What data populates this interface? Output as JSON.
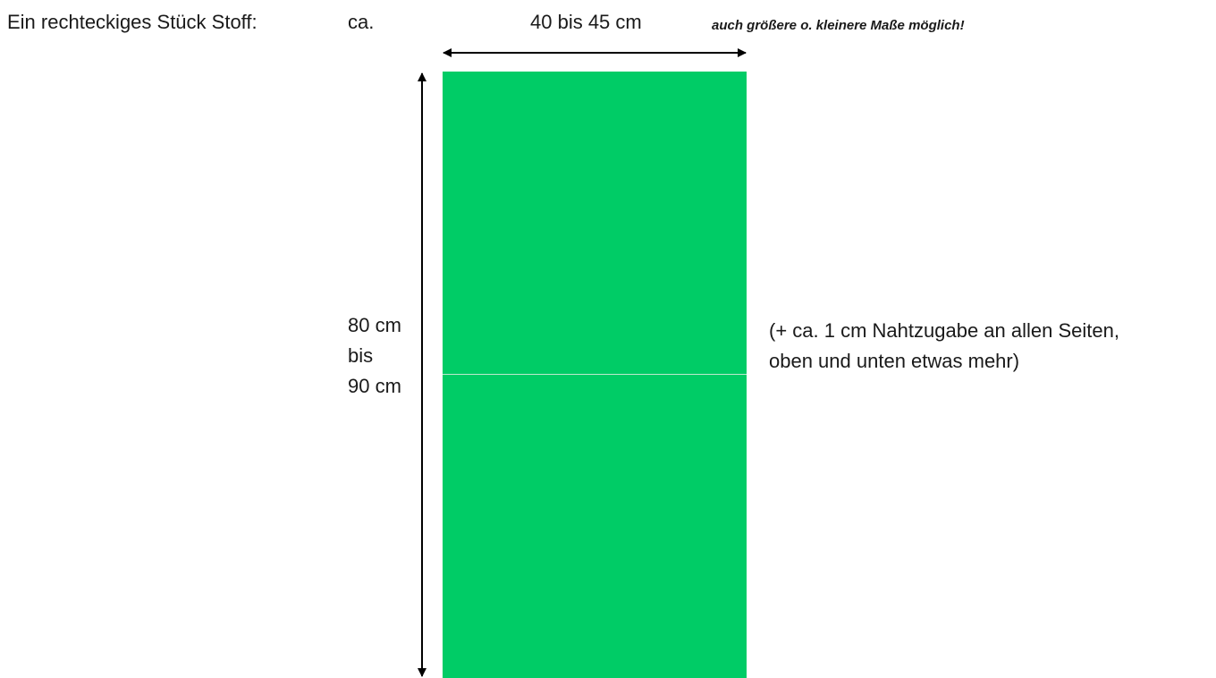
{
  "header": {
    "intro": "Ein rechteckiges Stück Stoff:",
    "approx": "ca.",
    "width": "40 bis 45 cm",
    "note": "auch größere o. kleinere Maße möglich!"
  },
  "height_label": {
    "line1": "80 cm",
    "line2": "bis",
    "line3": "90 cm"
  },
  "seam_allowance": {
    "line1": "(+ ca. 1 cm Nahtzugabe an allen Seiten,",
    "line2": "oben und unten etwas mehr)"
  },
  "colors": {
    "fabric": "#00cc66",
    "arrows": "#000000"
  }
}
